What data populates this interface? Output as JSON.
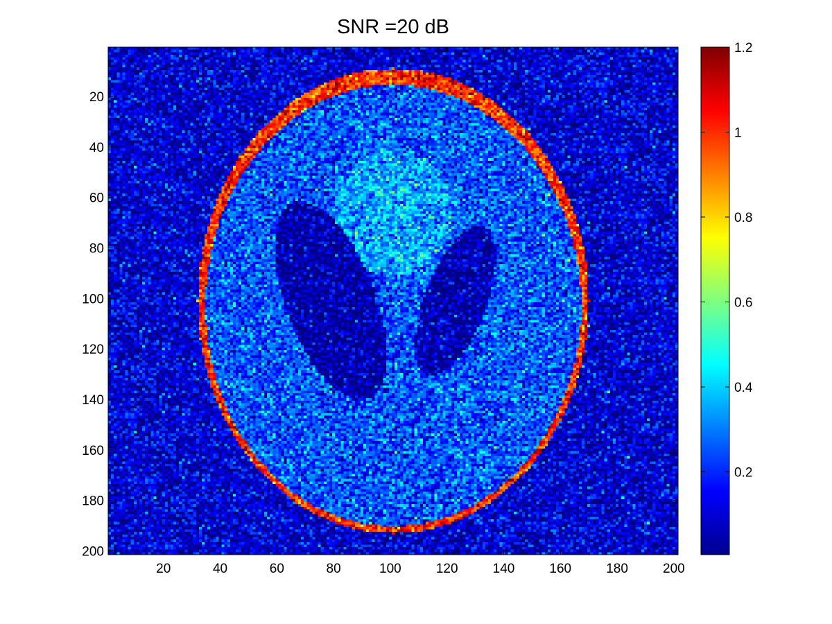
{
  "chart_data": {
    "type": "heatmap",
    "title": "SNR =20 dB",
    "xlabel": "",
    "ylabel": "",
    "x_range": [
      0.5,
      201.5
    ],
    "y_range": [
      0.5,
      201.5
    ],
    "y_direction": "reversed",
    "x_ticks": [
      20,
      40,
      60,
      80,
      100,
      120,
      140,
      160,
      180,
      200
    ],
    "y_ticks": [
      20,
      40,
      60,
      80,
      100,
      120,
      140,
      160,
      180,
      200
    ],
    "grid": false,
    "colormap": "jet",
    "colorbar": {
      "range": [
        0.005,
        1.2
      ],
      "ticks": [
        0.2,
        0.4,
        0.6,
        0.8,
        1,
        1.2
      ],
      "tick_labels": [
        "0.2",
        "0.4",
        "0.6",
        "0.8",
        "1",
        "1.2"
      ],
      "placement": "right"
    },
    "image": {
      "description": "Noisy Shepp-Logan phantom, 201x201 pixels",
      "size": [
        201,
        201
      ],
      "background_level": 0.1,
      "skull_ring_level": 1.0,
      "brain_interior_level": 0.25,
      "upper_central_region_level": 0.35,
      "ventricle_level": 0.05,
      "noise_std": 0.1
    }
  }
}
